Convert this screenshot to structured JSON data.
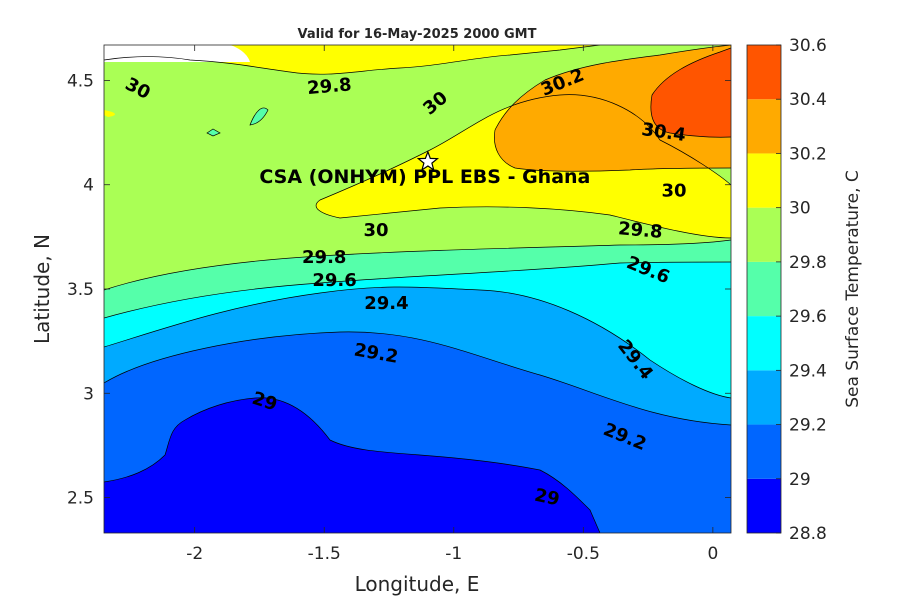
{
  "chart_data": {
    "type": "heatmap",
    "subtype": "filled-contour",
    "title": "Valid for 16-May-2025 2000 GMT",
    "xlabel": "Longitude, E",
    "ylabel": "Latitude, N",
    "xlim": [
      -2.35,
      0.07
    ],
    "ylim": [
      2.33,
      4.67
    ],
    "xticks": [
      "-2",
      "-1.5",
      "-1",
      "-0.5",
      "0"
    ],
    "xtick_values": [
      -2,
      -1.5,
      -1,
      -0.5,
      0
    ],
    "yticks": [
      "2.5",
      "3",
      "3.5",
      "4",
      "4.5"
    ],
    "ytick_values": [
      2.5,
      3,
      3.5,
      4,
      4.5
    ],
    "colorbar": {
      "label": "Sea Surface Temperature, C",
      "levels": [
        28.8,
        29,
        29.2,
        29.4,
        29.6,
        29.8,
        30,
        30.2,
        30.4,
        30.6
      ],
      "tick_labels": [
        "28.8",
        "29",
        "29.2",
        "29.4",
        "29.6",
        "29.8",
        "30",
        "30.2",
        "30.4",
        "30.6"
      ],
      "colors": [
        "#0000ff",
        "#0066ff",
        "#00aaff",
        "#00ffff",
        "#55ffaa",
        "#aaff55",
        "#ffff00",
        "#ffaa00",
        "#ff5500"
      ]
    },
    "contour_labels": [
      {
        "text": "30",
        "lon": -2.22,
        "lat": 4.46,
        "angle": 28
      },
      {
        "text": "29.8",
        "lon": -1.48,
        "lat": 4.47,
        "angle": -5
      },
      {
        "text": "30",
        "lon": -1.07,
        "lat": 4.39,
        "angle": -40
      },
      {
        "text": "30.2",
        "lon": -0.58,
        "lat": 4.49,
        "angle": -22
      },
      {
        "text": "30.4",
        "lon": -0.19,
        "lat": 4.25,
        "angle": 8
      },
      {
        "text": "30",
        "lon": -0.15,
        "lat": 3.97,
        "angle": 0
      },
      {
        "text": "29.8",
        "lon": -0.28,
        "lat": 3.78,
        "angle": 5
      },
      {
        "text": "30",
        "lon": -1.3,
        "lat": 3.78,
        "angle": 0
      },
      {
        "text": "29.8",
        "lon": -1.5,
        "lat": 3.65,
        "angle": 0
      },
      {
        "text": "29.6",
        "lon": -0.25,
        "lat": 3.59,
        "angle": 22
      },
      {
        "text": "29.6",
        "lon": -1.46,
        "lat": 3.54,
        "angle": 0
      },
      {
        "text": "29.4",
        "lon": -1.26,
        "lat": 3.43,
        "angle": 0
      },
      {
        "text": "29.2",
        "lon": -1.3,
        "lat": 3.19,
        "angle": 10
      },
      {
        "text": "29.4",
        "lon": -0.3,
        "lat": 3.16,
        "angle": 52
      },
      {
        "text": "29",
        "lon": -1.73,
        "lat": 2.96,
        "angle": 18
      },
      {
        "text": "29.2",
        "lon": -0.34,
        "lat": 2.79,
        "angle": 22
      },
      {
        "text": "29",
        "lon": -0.64,
        "lat": 2.5,
        "angle": 12
      }
    ],
    "marker": {
      "label": "CSA (ONHYM) PPL EBS  - Ghana",
      "lon": -1.1,
      "lat": 4.11,
      "symbol": "star"
    }
  }
}
